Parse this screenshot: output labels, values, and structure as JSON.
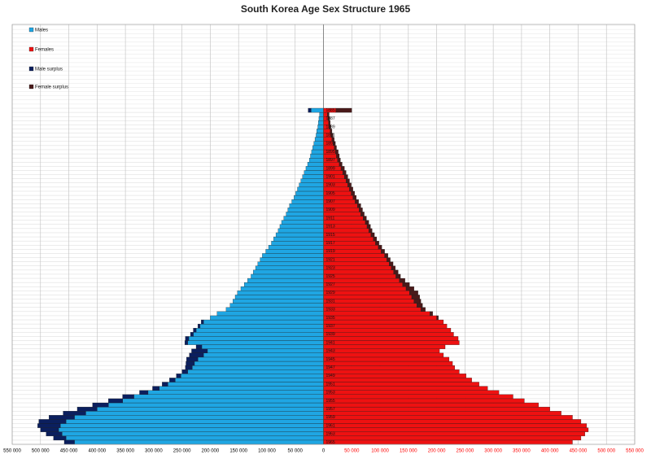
{
  "chart_data": {
    "type": "pyramid",
    "title": "South Korea Age Sex Structure 1965",
    "categories": [
      "1965",
      null,
      "1963",
      null,
      "1961",
      null,
      "1959",
      null,
      "1957",
      null,
      "1955",
      null,
      "1953",
      null,
      "1951",
      null,
      "1949",
      null,
      "1947",
      null,
      "1945",
      null,
      "1943",
      null,
      "1941",
      null,
      "1939",
      null,
      "1937",
      null,
      "1935",
      null,
      "1933",
      null,
      "1931",
      null,
      "1929",
      null,
      "1927",
      null,
      "1925",
      null,
      "1923",
      null,
      "1921",
      null,
      "1919",
      null,
      "1917",
      null,
      "1915",
      null,
      "1913",
      null,
      "1911",
      null,
      "1909",
      null,
      "1907",
      null,
      "1905",
      null,
      "1903",
      null,
      "1901",
      null,
      "1899",
      null,
      "1897",
      null,
      "1895",
      null,
      "1893",
      null,
      "1891",
      null,
      "1889",
      null,
      "1887",
      null,
      "1885"
    ],
    "series": [
      {
        "name": "Males",
        "color": "#1fa6e3",
        "side": "left",
        "values": [
          440000,
          455000,
          462000,
          468000,
          465000,
          455000,
          440000,
          420000,
          400000,
          380000,
          355000,
          335000,
          310000,
          290000,
          275000,
          262000,
          252000,
          240000,
          232000,
          228000,
          222000,
          212000,
          205000,
          215000,
          240000,
          238000,
          230000,
          225000,
          218000,
          212000,
          200000,
          188000,
          172000,
          165000,
          160000,
          156000,
          152000,
          146000,
          140000,
          134000,
          128000,
          124000,
          120000,
          116000,
          112000,
          108000,
          102000,
          97000,
          92000,
          88000,
          84000,
          80000,
          77000,
          74000,
          70000,
          66000,
          63000,
          60000,
          56000,
          52000,
          49000,
          46000,
          43000,
          40000,
          37000,
          34000,
          31000,
          28000,
          25000,
          23000,
          21000,
          19000,
          17000,
          15000,
          13000,
          12000,
          10000,
          9000,
          8000,
          7000,
          22000
        ]
      },
      {
        "name": "Females",
        "color": "#ee1111",
        "side": "right",
        "values": [
          440000,
          455000,
          462000,
          468000,
          465000,
          455000,
          440000,
          420000,
          400000,
          380000,
          355000,
          335000,
          310000,
          290000,
          275000,
          262000,
          252000,
          240000,
          232000,
          228000,
          222000,
          212000,
          205000,
          215000,
          240000,
          238000,
          230000,
          225000,
          218000,
          212000,
          200000,
          188000,
          172000,
          165000,
          160000,
          156000,
          152000,
          146000,
          140000,
          134000,
          128000,
          124000,
          120000,
          116000,
          112000,
          108000,
          102000,
          97000,
          92000,
          88000,
          84000,
          80000,
          77000,
          74000,
          70000,
          66000,
          63000,
          60000,
          56000,
          52000,
          49000,
          46000,
          43000,
          40000,
          37000,
          34000,
          31000,
          28000,
          25000,
          23000,
          21000,
          19000,
          17000,
          15000,
          13000,
          12000,
          10000,
          9000,
          8000,
          7000,
          22000
        ]
      },
      {
        "name": "Male surplus",
        "color": "#0b1f5e",
        "side": "left",
        "values": [
          18000,
          22000,
          28000,
          32000,
          40000,
          48000,
          45000,
          40000,
          35000,
          28000,
          25000,
          20000,
          15000,
          12000,
          10000,
          10000,
          8000,
          10000,
          12000,
          15000,
          20000,
          25000,
          28000,
          10000,
          5000,
          6000,
          5000,
          5000,
          4000,
          4000,
          0,
          0,
          0,
          0,
          0,
          0,
          0,
          0,
          0,
          0,
          0,
          0,
          0,
          0,
          0,
          0,
          0,
          0,
          0,
          0,
          0,
          0,
          0,
          0,
          0,
          0,
          0,
          0,
          0,
          0,
          0,
          0,
          0,
          0,
          0,
          0,
          0,
          0,
          0,
          0,
          0,
          0,
          0,
          0,
          0,
          0,
          0,
          0,
          0,
          0,
          5000
        ]
      },
      {
        "name": "Female surplus",
        "color": "#4a1a1a",
        "side": "right",
        "values": [
          0,
          0,
          0,
          0,
          0,
          0,
          0,
          0,
          0,
          0,
          0,
          0,
          0,
          0,
          0,
          0,
          0,
          0,
          0,
          0,
          0,
          0,
          0,
          0,
          0,
          0,
          0,
          0,
          0,
          0,
          3000,
          5000,
          8000,
          10000,
          12000,
          14000,
          15000,
          14000,
          12000,
          10000,
          8000,
          8000,
          7000,
          7000,
          6000,
          6000,
          6000,
          6000,
          6000,
          6000,
          6000,
          6000,
          6000,
          6000,
          6000,
          6000,
          6000,
          6000,
          6000,
          6000,
          6000,
          6000,
          6000,
          6000,
          6000,
          6000,
          6000,
          5000,
          5000,
          5000,
          5000,
          4000,
          4000,
          4000,
          4000,
          3000,
          3000,
          3000,
          3000,
          3000,
          28000
        ]
      }
    ],
    "xlim": [
      -550000,
      550000
    ],
    "xticks": [
      {
        "value": -550000,
        "label": "550 000"
      },
      {
        "value": -500000,
        "label": "500 000"
      },
      {
        "value": -450000,
        "label": "450 000"
      },
      {
        "value": -400000,
        "label": "400 000"
      },
      {
        "value": -350000,
        "label": "350 000"
      },
      {
        "value": -300000,
        "label": "300 000"
      },
      {
        "value": -250000,
        "label": "250 000"
      },
      {
        "value": -200000,
        "label": "200 000"
      },
      {
        "value": -150000,
        "label": "150 000"
      },
      {
        "value": -100000,
        "label": "100 000"
      },
      {
        "value": -50000,
        "label": "50 000"
      },
      0,
      {
        "value": 50000,
        "label": "50 000"
      },
      {
        "value": 100000,
        "label": "100 000"
      },
      {
        "value": 150000,
        "label": "150 000"
      },
      {
        "value": 200000,
        "label": "200 000"
      },
      {
        "value": 250000,
        "label": "250 000"
      },
      {
        "value": 300000,
        "label": "300 000"
      },
      {
        "value": 350000,
        "label": "350 000"
      },
      {
        "value": 400000,
        "label": "400 000"
      },
      {
        "value": 450000,
        "label": "450 000"
      },
      {
        "value": 500000,
        "label": "500 000"
      },
      {
        "value": 550000,
        "label": "550 000"
      }
    ],
    "negative_tick_color": "#000000",
    "positive_tick_color": "#ff0000",
    "grid": true,
    "legend": "upper-left"
  }
}
